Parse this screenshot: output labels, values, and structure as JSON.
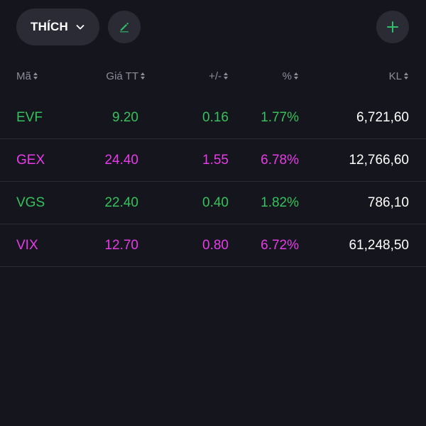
{
  "toolbar": {
    "list_label": "THÍCH",
    "edit_icon": "pencil-icon",
    "add_icon": "plus-icon",
    "dropdown_icon": "chevron-down-icon"
  },
  "colors": {
    "background": "#15151e",
    "button_bg": "#2a2b35",
    "up": "#35c25a",
    "ceiling": "#e63ce6",
    "header_text": "#8e8e99",
    "volume_text": "#ffffff",
    "accent": "#2fbf6a"
  },
  "table": {
    "columns": [
      {
        "key": "symbol",
        "label": "Mã"
      },
      {
        "key": "price",
        "label": "Giá TT"
      },
      {
        "key": "change",
        "label": "+/-"
      },
      {
        "key": "percent",
        "label": "%"
      },
      {
        "key": "volume",
        "label": "KL"
      }
    ],
    "rows": [
      {
        "symbol": "EVF",
        "price": "9.20",
        "change": "0.16",
        "percent": "1.77%",
        "volume": "6,721,60",
        "color": "#35c25a"
      },
      {
        "symbol": "GEX",
        "price": "24.40",
        "change": "1.55",
        "percent": "6.78%",
        "volume": "12,766,60",
        "color": "#e63ce6"
      },
      {
        "symbol": "VGS",
        "price": "22.40",
        "change": "0.40",
        "percent": "1.82%",
        "volume": "786,10",
        "color": "#35c25a"
      },
      {
        "symbol": "VIX",
        "price": "12.70",
        "change": "0.80",
        "percent": "6.72%",
        "volume": "61,248,50",
        "color": "#e63ce6"
      }
    ]
  }
}
